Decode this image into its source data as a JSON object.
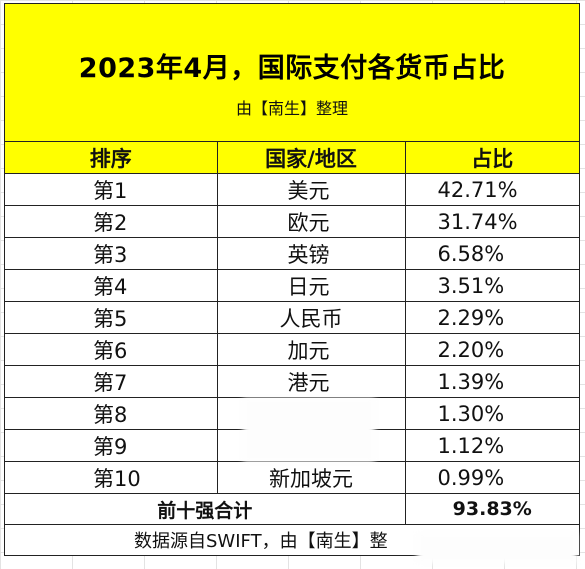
{
  "title": "2023年4月，国际支付各货币占比",
  "subtitle": "由【南生】整理",
  "headers": [
    "排序",
    "国家/地区",
    "占比"
  ],
  "rows": [
    {
      "rank": "第1",
      "currency": "美元",
      "share": "42.71%"
    },
    {
      "rank": "第2",
      "currency": "欧元",
      "share": "31.74%"
    },
    {
      "rank": "第3",
      "currency": "英镑",
      "share": "6.58%"
    },
    {
      "rank": "第4",
      "currency": "日元",
      "share": "3.51%"
    },
    {
      "rank": "第5",
      "currency": "人民币",
      "share": "2.29%"
    },
    {
      "rank": "第6",
      "currency": "加元",
      "share": "2.20%"
    },
    {
      "rank": "第7",
      "currency": "港元",
      "share": "1.39%"
    },
    {
      "rank": "第8",
      "currency": "",
      "share": "1.30%"
    },
    {
      "rank": "第9",
      "currency": "",
      "share": "1.12%"
    },
    {
      "rank": "第10",
      "currency": "新加坡元",
      "share": "0.99%"
    }
  ],
  "total": {
    "label": "前十强合计",
    "value": "93.83%"
  },
  "source": "数据源自SWIFT，由【南生】整"
}
